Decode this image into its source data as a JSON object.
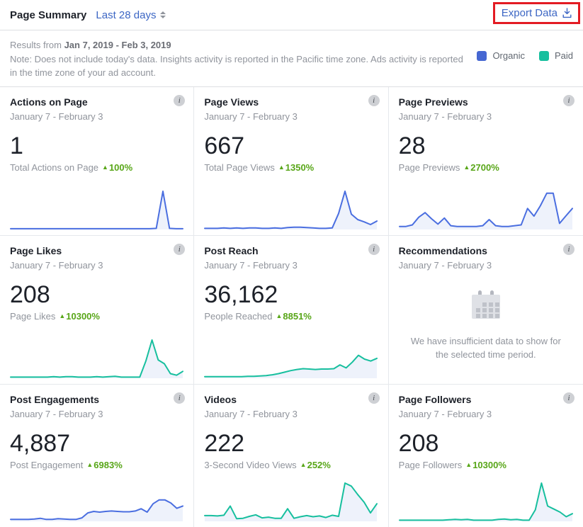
{
  "header": {
    "title": "Page Summary",
    "range_selector": "Last 28 days",
    "export_button": "Export Data"
  },
  "meta": {
    "results_prefix": "Results from ",
    "results_dates": "Jan 7, 2019 - Feb 3, 2019",
    "note": "Note: Does not include today's data. Insights activity is reported in the Pacific time zone. Ads activity is reported in the time zone of your ad account.",
    "legend": [
      {
        "label": "Organic",
        "color": "#4667d2"
      },
      {
        "label": "Paid",
        "color": "#17bf9e"
      }
    ]
  },
  "colors": {
    "organic": "#4a6ee0",
    "paid": "#17bf9e",
    "positive": "#58a618",
    "fill": "#eef2fb",
    "highlight_box": "#e31b23"
  },
  "cards": [
    {
      "title": "Actions on Page",
      "date_range": "January 7 - February 3",
      "value": "1",
      "label": "Total Actions on Page",
      "delta": "100%",
      "series": "organic",
      "sparkline": [
        2,
        2,
        2,
        2,
        2,
        2,
        2,
        2,
        2,
        2,
        2,
        2,
        2,
        2,
        2,
        2,
        2,
        2,
        2,
        2,
        2,
        2,
        3,
        100,
        3,
        2,
        2
      ]
    },
    {
      "title": "Page Views",
      "date_range": "January 7 - February 3",
      "value": "667",
      "label": "Total Page Views",
      "delta": "1350%",
      "series": "organic",
      "sparkline": [
        3,
        3,
        3,
        4,
        3,
        4,
        3,
        4,
        4,
        3,
        3,
        4,
        3,
        5,
        6,
        6,
        5,
        4,
        3,
        3,
        4,
        42,
        100,
        40,
        26,
        20,
        13,
        22
      ]
    },
    {
      "title": "Page Previews",
      "date_range": "January 7 - February 3",
      "value": "28",
      "label": "Page Previews",
      "delta": "2700%",
      "series": "organic",
      "sparkline": [
        8,
        8,
        12,
        32,
        44,
        28,
        14,
        30,
        10,
        8,
        8,
        8,
        8,
        10,
        26,
        10,
        8,
        8,
        10,
        12,
        55,
        35,
        62,
        95,
        95,
        16,
        36,
        55
      ]
    },
    {
      "title": "Page Likes",
      "date_range": "January 7 - February 3",
      "value": "208",
      "label": "Page Likes",
      "delta": "10300%",
      "series": "paid",
      "sparkline": [
        3,
        3,
        3,
        3,
        3,
        3,
        3,
        4,
        3,
        4,
        4,
        3,
        3,
        3,
        4,
        3,
        4,
        5,
        3,
        3,
        3,
        3,
        45,
        100,
        48,
        38,
        12,
        8,
        18
      ]
    },
    {
      "title": "Post Reach",
      "date_range": "January 7 - February 3",
      "value": "36,162",
      "label": "People Reached",
      "delta": "8851%",
      "series": "paid",
      "sparkline": [
        4,
        4,
        4,
        4,
        4,
        4,
        4,
        5,
        5,
        6,
        7,
        9,
        12,
        16,
        20,
        23,
        25,
        24,
        23,
        24,
        24,
        25,
        35,
        27,
        42,
        60,
        50,
        45,
        52
      ]
    },
    {
      "title": "Recommendations",
      "date_range": "January 7 - February 3",
      "empty": true,
      "message": "We have insufficient data to show for the selected time period."
    },
    {
      "title": "Post Engagements",
      "date_range": "January 7 - February 3",
      "value": "4,887",
      "label": "Post Engagement",
      "delta": "6983%",
      "series": "organic",
      "sparkline": [
        5,
        5,
        5,
        5,
        6,
        8,
        5,
        5,
        7,
        6,
        5,
        5,
        9,
        22,
        26,
        24,
        26,
        27,
        26,
        25,
        25,
        27,
        33,
        24,
        46,
        56,
        56,
        48,
        34,
        40
      ]
    },
    {
      "title": "Videos",
      "date_range": "January 7 - February 3",
      "value": "222",
      "label": "3-Second Video Views",
      "delta": "252%",
      "series": "paid",
      "sparkline": [
        15,
        15,
        14,
        16,
        40,
        7,
        8,
        13,
        17,
        9,
        11,
        8,
        8,
        33,
        8,
        12,
        15,
        12,
        14,
        10,
        16,
        13,
        100,
        92,
        70,
        50,
        22,
        46
      ]
    },
    {
      "title": "Page Followers",
      "date_range": "January 7 - February 3",
      "value": "208",
      "label": "Page Followers",
      "delta": "10300%",
      "series": "paid",
      "sparkline": [
        3,
        3,
        3,
        3,
        3,
        3,
        3,
        3,
        4,
        5,
        4,
        5,
        3,
        3,
        3,
        3,
        5,
        6,
        4,
        5,
        3,
        3,
        30,
        100,
        40,
        32,
        24,
        12,
        20
      ]
    }
  ]
}
